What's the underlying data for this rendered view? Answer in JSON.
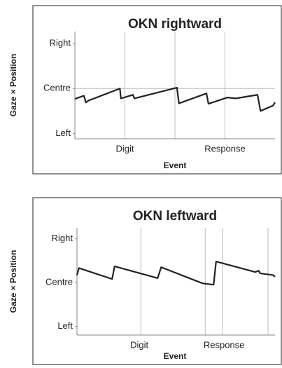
{
  "chart_data": [
    {
      "type": "line",
      "title": "OKN rightward",
      "xlabel": "Event",
      "ylabel": "Gaze × Position",
      "color": "#222222",
      "x": [
        0,
        0.18,
        0.22,
        0.27,
        0.9,
        0.92,
        1.16,
        1.19,
        2.04,
        2.08,
        2.63,
        2.67,
        3.05,
        3.22,
        3.65,
        3.71,
        3.96,
        4.0
      ],
      "values": [
        -0.23,
        -0.16,
        -0.31,
        -0.27,
        0,
        -0.22,
        -0.14,
        -0.22,
        0.02,
        -0.33,
        -0.11,
        -0.34,
        -0.2,
        -0.22,
        -0.14,
        -0.5,
        -0.38,
        -0.31
      ],
      "xlim": [
        0,
        4
      ],
      "ylim": [
        -1.12,
        1.27
      ],
      "xticks": [
        {
          "value": 1,
          "label": "Digit"
        },
        {
          "value": 3,
          "label": "Response"
        }
      ],
      "xgrid": [
        1,
        2,
        3
      ],
      "ygrid": [
        0
      ],
      "yticks": [
        {
          "value": 1,
          "label": "Right"
        },
        {
          "value": 0,
          "label": "Centre"
        },
        {
          "value": -1,
          "label": "Left"
        }
      ]
    },
    {
      "type": "line",
      "title": "OKN leftward",
      "xlabel": "Event",
      "ylabel": "Gaze × Position",
      "color": "#222222",
      "x": [
        0,
        0.04,
        0.71,
        0.76,
        1.63,
        1.7,
        2.54,
        2.76,
        2.81,
        3.6,
        3.67,
        3.7,
        3.96,
        4.0
      ],
      "values": [
        0.17,
        0.33,
        0.08,
        0.37,
        0.1,
        0.35,
        -0.02,
        -0.05,
        0.48,
        0.24,
        0.27,
        0.21,
        0.17,
        0.13
      ],
      "xlim": [
        0,
        4
      ],
      "ylim": [
        -1.2,
        1.25
      ],
      "xticks": [
        {
          "value": 1.26,
          "label": "Digit"
        },
        {
          "value": 2.97,
          "label": "Response"
        }
      ],
      "xgrid": [
        1.29,
        2.59,
        2.94,
        3.86
      ],
      "ygrid": [],
      "yticks": [
        {
          "value": 1,
          "label": "Right"
        },
        {
          "value": 0,
          "label": "Centre"
        },
        {
          "value": -1,
          "label": "Left"
        }
      ]
    }
  ]
}
